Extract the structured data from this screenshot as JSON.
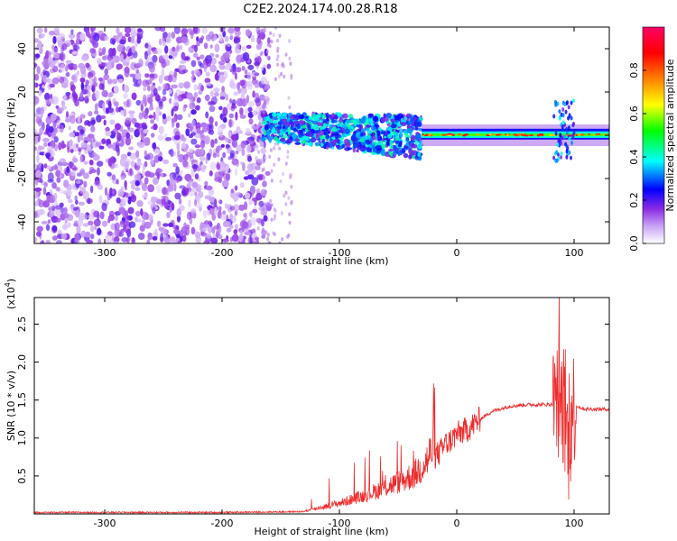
{
  "title": "C2E2.2024.174.00.28.R18",
  "chart_data": [
    {
      "type": "heatmap",
      "xlabel": "Height of straight line (km)",
      "ylabel": "Frequency (Hz)",
      "xlim": [
        -360,
        130
      ],
      "ylim": [
        -50,
        50
      ],
      "x_ticks": [
        -300,
        -200,
        -100,
        0,
        100
      ],
      "y_ticks": [
        -40,
        -20,
        0,
        20,
        40
      ],
      "colorbar": {
        "label": "Normalized spectral amplitude",
        "range": [
          0.0,
          1.0
        ],
        "ticks": [
          0.0,
          0.2,
          0.4,
          0.6,
          0.8
        ],
        "tick_labels": [
          "0.0",
          "0.2",
          "0.4",
          "0.6",
          "0.8"
        ],
        "colormap": [
          "#ffffff",
          "#8a2be2",
          "#0000ff",
          "#00ffff",
          "#00ff00",
          "#ffff00",
          "#ff8000",
          "#ff0000",
          "#ff0066"
        ]
      },
      "regions": [
        {
          "x_range": [
            -360,
            -160
          ],
          "y_range": [
            -50,
            50
          ],
          "amplitude": 0.1,
          "pattern": "scattered noise"
        },
        {
          "x_range": [
            -160,
            -30
          ],
          "y_range": [
            -10,
            15
          ],
          "amplitude": 0.35,
          "pattern": "broadband signal"
        },
        {
          "x_range": [
            -30,
            130
          ],
          "y_range": [
            -2,
            3
          ],
          "amplitude": 0.6,
          "pattern": "narrow band near 0 Hz"
        },
        {
          "x_range": [
            80,
            100
          ],
          "y_range": [
            -12,
            16
          ],
          "amplitude": 0.3,
          "pattern": "burst"
        }
      ]
    },
    {
      "type": "line",
      "xlabel": "Height of straight line (km)",
      "ylabel": "SNR (10 * v/v)",
      "y_scale_label": "(x10",
      "y_scale_exponent": "4",
      "y_scale_close": ")",
      "xlim": [
        -360,
        130
      ],
      "ylim": [
        0,
        2.85
      ],
      "x_ticks": [
        -300,
        -200,
        -100,
        0,
        100
      ],
      "y_ticks": [
        0.5,
        1.0,
        1.5,
        2.0,
        2.5
      ],
      "y_tick_labels": [
        "0.5",
        "1.0",
        "1.5",
        "2.0",
        "2.5"
      ],
      "color": "#ee2c2c",
      "series": [
        {
          "x": [
            -360,
            -300,
            -200,
            -130,
            -120,
            -100,
            -80,
            -60,
            -45,
            -35,
            -25,
            -20,
            -15,
            -10,
            0,
            10,
            20,
            30,
            45,
            60,
            75,
            85,
            90,
            95,
            100,
            105,
            110,
            130
          ],
          "y": [
            0.02,
            0.02,
            0.02,
            0.03,
            0.06,
            0.12,
            0.2,
            0.3,
            0.38,
            0.45,
            0.6,
            0.75,
            0.8,
            0.9,
            1.05,
            1.12,
            1.25,
            1.35,
            1.42,
            1.44,
            1.44,
            1.45,
            1.45,
            0.9,
            1.45,
            1.4,
            1.38,
            1.38
          ]
        }
      ]
    }
  ]
}
